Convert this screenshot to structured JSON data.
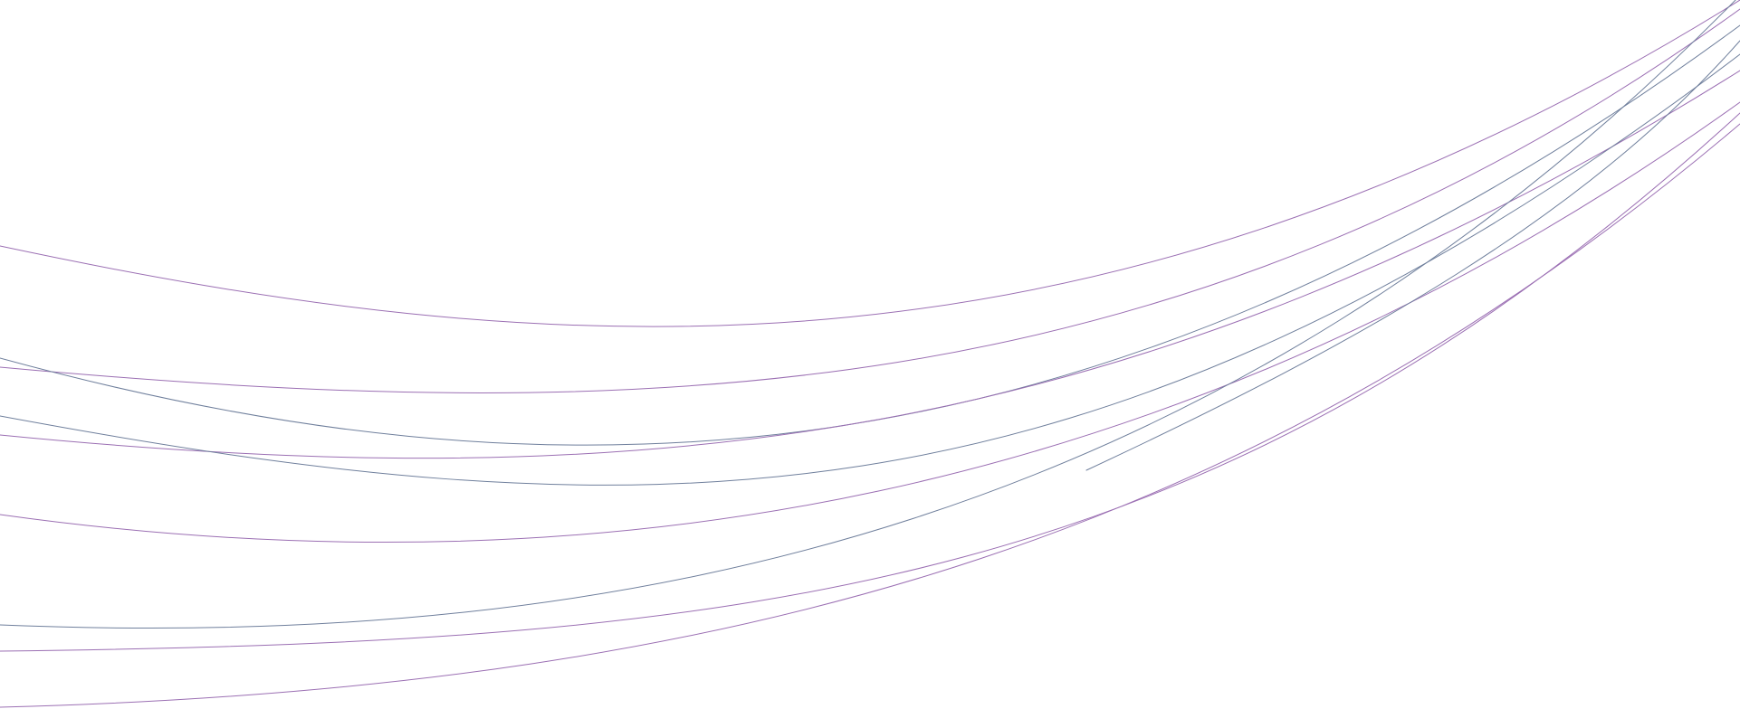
{
  "background": {
    "color": "#ffffff"
  },
  "decoration": {
    "name": "abstract-curved-lines",
    "line_count": 10,
    "stroke_colors": {
      "violet": "#9b6fb3",
      "slate": "#6f7f9c"
    }
  }
}
